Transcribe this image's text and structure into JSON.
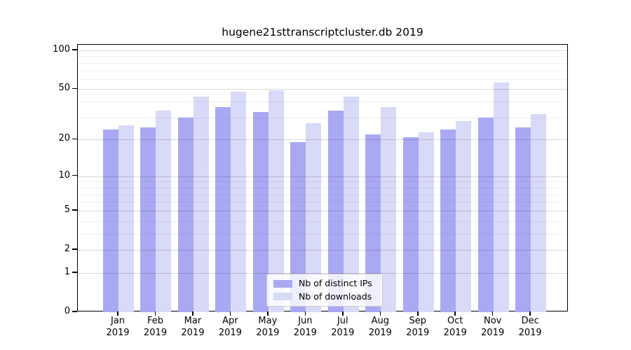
{
  "chart_data": {
    "type": "bar",
    "title": "hugene21sttranscriptcluster.db 2019",
    "categories": [
      "Jan",
      "Feb",
      "Mar",
      "Apr",
      "May",
      "Jun",
      "Jul",
      "Aug",
      "Sep",
      "Oct",
      "Nov",
      "Dec"
    ],
    "category_year": "2019",
    "series": [
      {
        "name": "Nb of distinct IPs",
        "color": "#a9a9f3",
        "values": [
          24,
          25,
          30,
          36,
          33,
          19,
          34,
          22,
          21,
          24,
          30,
          25
        ]
      },
      {
        "name": "Nb of downloads",
        "color": "#d9d9f8",
        "values": [
          26,
          34,
          44,
          48,
          49,
          27,
          44,
          36,
          23,
          28,
          56,
          32
        ]
      }
    ],
    "yscale": "log1p",
    "ylim": [
      0,
      110
    ],
    "y_major_ticks": [
      0,
      1,
      2,
      5,
      10,
      20,
      50,
      100
    ],
    "y_major_tick_labels": [
      "0",
      "1",
      "2",
      "5",
      "10",
      "20",
      "50",
      "100"
    ],
    "y_minor_ticks": [
      3,
      4,
      6,
      7,
      8,
      9,
      30,
      40,
      60,
      70,
      80,
      90
    ],
    "grid": true,
    "legend_position": "lower center",
    "background_color": "#ffffff",
    "major_grid_color": "#d9d9d9",
    "minor_grid_color": "#f2f2f2"
  }
}
